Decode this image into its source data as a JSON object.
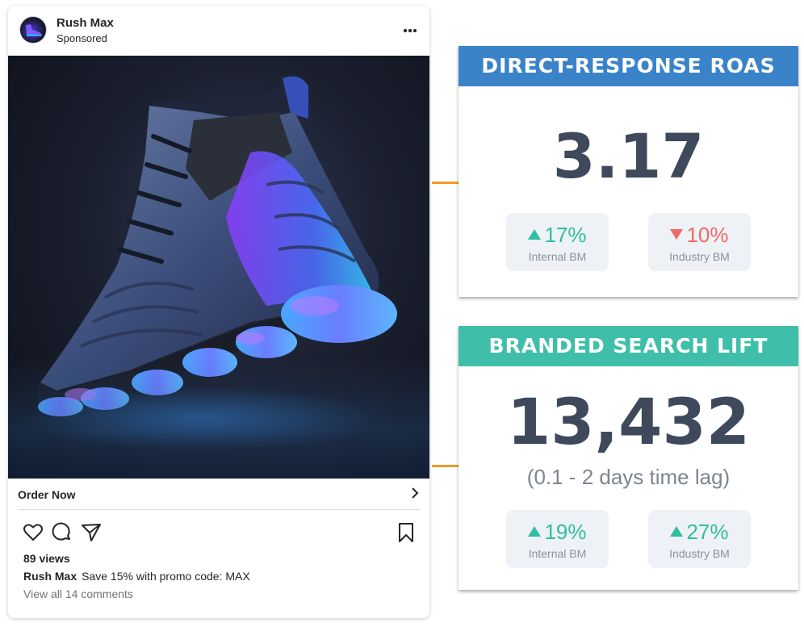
{
  "post": {
    "author": "Rush Max",
    "sponsored_label": "Sponsored",
    "image_alt": "sneaker-photo",
    "cta_label": "Order Now",
    "views": "89 views",
    "caption_author": "Rush Max",
    "caption_text": "Save 15% with promo code: MAX",
    "comments_link": "View all 14 comments"
  },
  "colors": {
    "accent_orange": "#f39a25",
    "roas_header": "#3a83c9",
    "search_header": "#3fbfaa",
    "positive": "#2fbfa3",
    "negative": "#f06a63",
    "metric_text": "#3e4a5b"
  },
  "roas": {
    "title": "DIRECT-RESPONSE ROAS",
    "value": "3.17",
    "internal": {
      "change": "17%",
      "direction": "up",
      "label": "Internal BM"
    },
    "industry": {
      "change": "10%",
      "direction": "down",
      "label": "Industry BM"
    }
  },
  "search_lift": {
    "title": "BRANDED SEARCH LIFT",
    "value": "13,432",
    "time_lag": "(0.1 - 2 days time lag)",
    "internal": {
      "change": "19%",
      "direction": "up",
      "label": "Internal BM"
    },
    "industry": {
      "change": "27%",
      "direction": "up",
      "label": "Industry BM"
    }
  },
  "icons": [
    "more-icon",
    "chevron-right-icon",
    "heart-icon",
    "comment-icon",
    "share-icon",
    "bookmark-icon"
  ]
}
